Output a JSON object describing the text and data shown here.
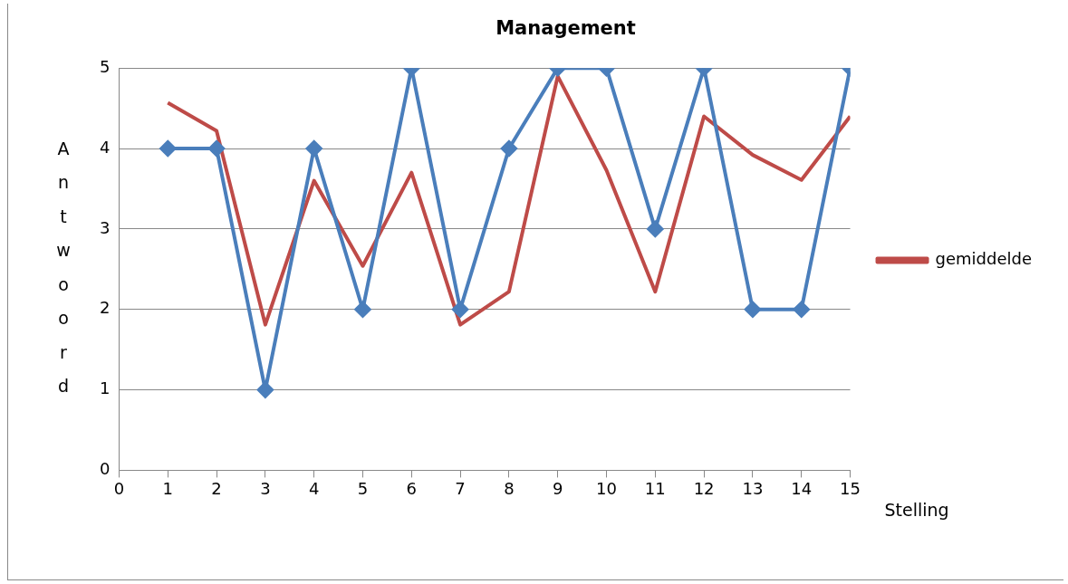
{
  "chart_data": {
    "type": "line",
    "title": "Management",
    "xlabel": "Stelling",
    "ylabel": "Antwoord",
    "x": [
      1,
      2,
      3,
      4,
      5,
      6,
      7,
      8,
      9,
      10,
      11,
      12,
      13,
      14,
      15
    ],
    "series": [
      {
        "color": "#4a7ebb",
        "marker": "diamond",
        "values": [
          4,
          4,
          1,
          4,
          2,
          5,
          2,
          4,
          5,
          5,
          3,
          5,
          2,
          2,
          5
        ]
      },
      {
        "name": "gemiddelde",
        "color": "#be4b48",
        "marker": "none",
        "values": [
          4.57,
          4.22,
          1.81,
          3.6,
          2.54,
          3.7,
          1.81,
          2.22,
          4.9,
          3.73,
          2.22,
          4.4,
          3.92,
          3.61,
          4.4
        ]
      }
    ],
    "xlim": [
      0,
      15
    ],
    "xticks": [
      0,
      1,
      2,
      3,
      4,
      5,
      6,
      7,
      8,
      9,
      10,
      11,
      12,
      13,
      14,
      15
    ],
    "ylim": [
      0,
      5
    ],
    "yticks": [
      0,
      1,
      2,
      3,
      4,
      5
    ],
    "grid": "y",
    "legend": "right"
  }
}
